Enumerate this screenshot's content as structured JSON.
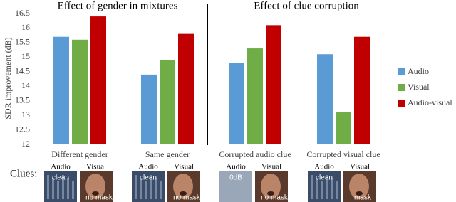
{
  "chart_data": {
    "type": "bar",
    "section_titles": [
      "Effect of gender in mixtures",
      "Effect of clue corruption"
    ],
    "ylabel": "SDR improvement (dB)",
    "categories": [
      "Different gender",
      "Same gender",
      "Corrupted audio clue",
      "Corrupted visual clue"
    ],
    "series": [
      {
        "name": "Audio",
        "color": "#5b9bd5",
        "values": [
          15.7,
          14.4,
          14.8,
          15.1
        ]
      },
      {
        "name": "Visual",
        "color": "#70ad47",
        "values": [
          15.6,
          14.9,
          15.3,
          13.1
        ]
      },
      {
        "name": "Audio-visual",
        "color": "#c00000",
        "values": [
          16.4,
          15.8,
          16.1,
          15.7
        ]
      }
    ],
    "ylim": [
      12,
      16.5
    ],
    "yticks": [
      12,
      12.5,
      13,
      13.5,
      14,
      14.5,
      15,
      15.5,
      16,
      16.5
    ],
    "grid": false,
    "legend": "right"
  },
  "clues": {
    "label": "Clues:",
    "groups": [
      {
        "audio_label": "Audio",
        "visual_label": "Visual",
        "audio_text": "clean",
        "visual_text": "no mask"
      },
      {
        "audio_label": "Audio",
        "visual_label": "Visual",
        "audio_text": "clean",
        "visual_text": "no mask"
      },
      {
        "audio_label": "Audio",
        "visual_label": "Visual",
        "audio_text": "0dB",
        "visual_text": "no mask"
      },
      {
        "audio_label": "Audio",
        "visual_label": "Visual",
        "audio_text": "clean",
        "visual_text": "mask"
      }
    ]
  }
}
